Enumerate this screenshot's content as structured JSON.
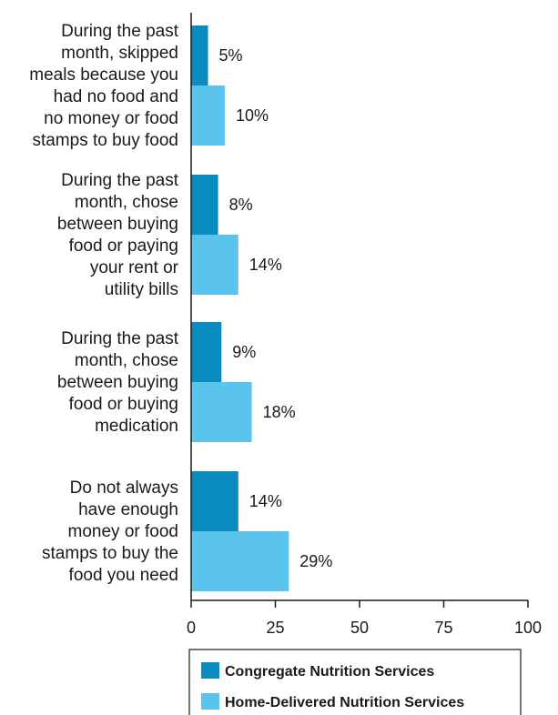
{
  "chart_data": {
    "type": "bar",
    "orientation": "horizontal",
    "categories": [
      [
        "During the past",
        "month, skipped",
        "meals because you",
        "had no food and",
        "no money or food",
        "stamps to buy food"
      ],
      [
        "During the past",
        "month, chose",
        "between buying",
        "food or paying",
        "your rent or",
        "utility bills"
      ],
      [
        "During the past",
        "month, chose",
        "between buying",
        "food or buying",
        "medication"
      ],
      [
        "Do not always",
        "have enough",
        "money or food",
        "stamps to buy the",
        "food you need"
      ]
    ],
    "series": [
      {
        "name": "Congregate Nutrition Services",
        "color": "#0a8cc0",
        "values": [
          5,
          8,
          9,
          14
        ],
        "labels": [
          "5%",
          "8%",
          "9%",
          "14%"
        ]
      },
      {
        "name": "Home-Delivered Nutrition Services",
        "color": "#5bc4ec",
        "values": [
          10,
          14,
          18,
          29
        ],
        "labels": [
          "10%",
          "14%",
          "18%",
          "29%"
        ]
      }
    ],
    "xlim": [
      0,
      100
    ],
    "xticks": [
      0,
      25,
      50,
      75,
      100
    ],
    "xtick_labels": [
      "0",
      "25",
      "50",
      "75",
      "100"
    ],
    "grid": false,
    "legend_position": "bottom"
  }
}
